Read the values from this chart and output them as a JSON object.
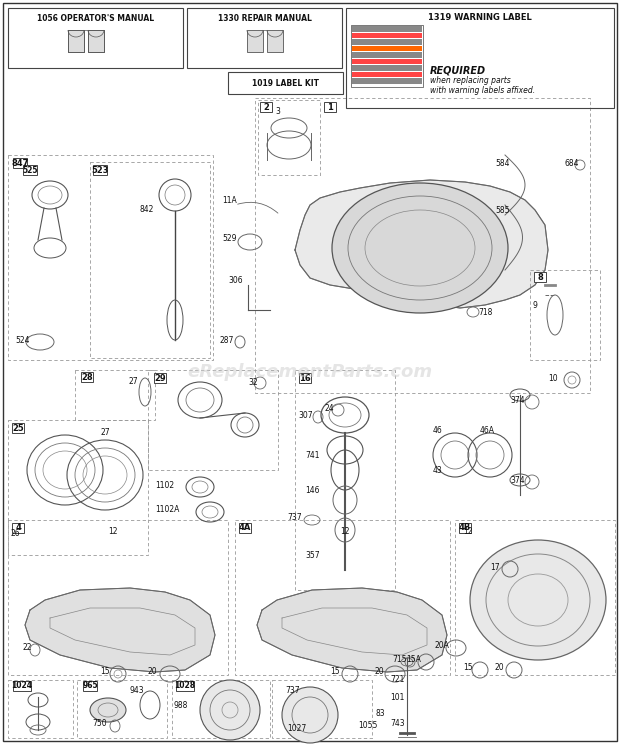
{
  "bg_color": "#f5f5f0",
  "border_color": "#333333",
  "line_color": "#666666",
  "text_color": "#111111",
  "dash_color": "#888888",
  "watermark": "eReplacementParts.com",
  "fig_w": 6.2,
  "fig_h": 7.44,
  "dpi": 100,
  "header": {
    "manual1_label": "1056 OPERATOR'S MANUAL",
    "manual2_label": "1330 REPAIR MANUAL",
    "warning_label": "1319 WARNING LABEL",
    "label_kit": "1019 LABEL KIT",
    "required_text": "REQUIRED when replacing parts\nwith warning labels affixed."
  }
}
